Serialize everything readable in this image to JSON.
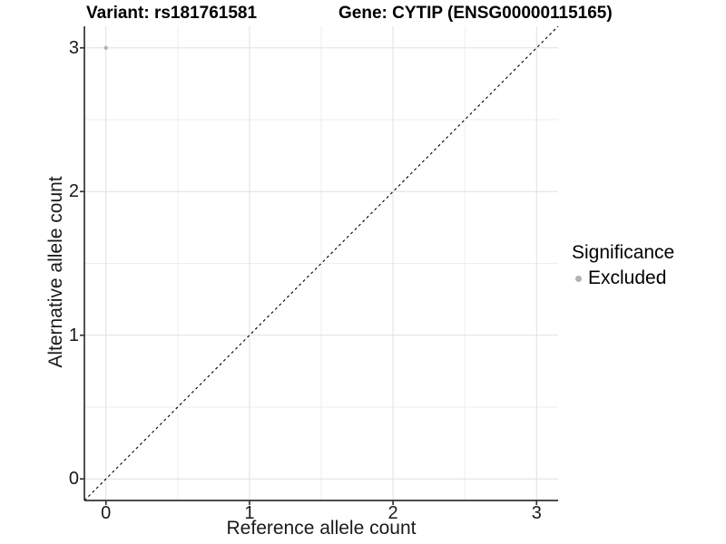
{
  "titles": {
    "left": "Variant: rs181761581",
    "right": "Gene: CYTIP (ENSG00000115165)"
  },
  "chart_data": {
    "type": "scatter",
    "xlabel": "Reference allele count",
    "ylabel": "Alternative allele count",
    "xlim": [
      -0.15,
      3.15
    ],
    "ylim": [
      -0.15,
      3.15
    ],
    "xticks": [
      0,
      1,
      2,
      3
    ],
    "yticks": [
      0,
      1,
      2,
      3
    ],
    "minor_xticks": [
      0.5,
      1.5,
      2.5
    ],
    "minor_yticks": [
      0.5,
      1.5,
      2.5
    ],
    "grid": "major+minor on white background",
    "points": [
      {
        "x": 0,
        "y": 3,
        "series": "Excluded",
        "color": "#b3b3b3",
        "radius": 2.2
      }
    ],
    "reference_line": {
      "slope": 1,
      "intercept": 0,
      "style": "dashed",
      "color": "#000000"
    },
    "legend": {
      "title": "Significance",
      "position": "right",
      "entries": [
        {
          "label": "Excluded",
          "color": "#b3b3b3"
        }
      ]
    }
  },
  "colors": {
    "background": "#ffffff",
    "grid_major": "#e0e0e0",
    "grid_minor": "#eeeeee",
    "axis_line": "#333333",
    "tick_mark": "#333333",
    "point": "#b3b3b3"
  }
}
